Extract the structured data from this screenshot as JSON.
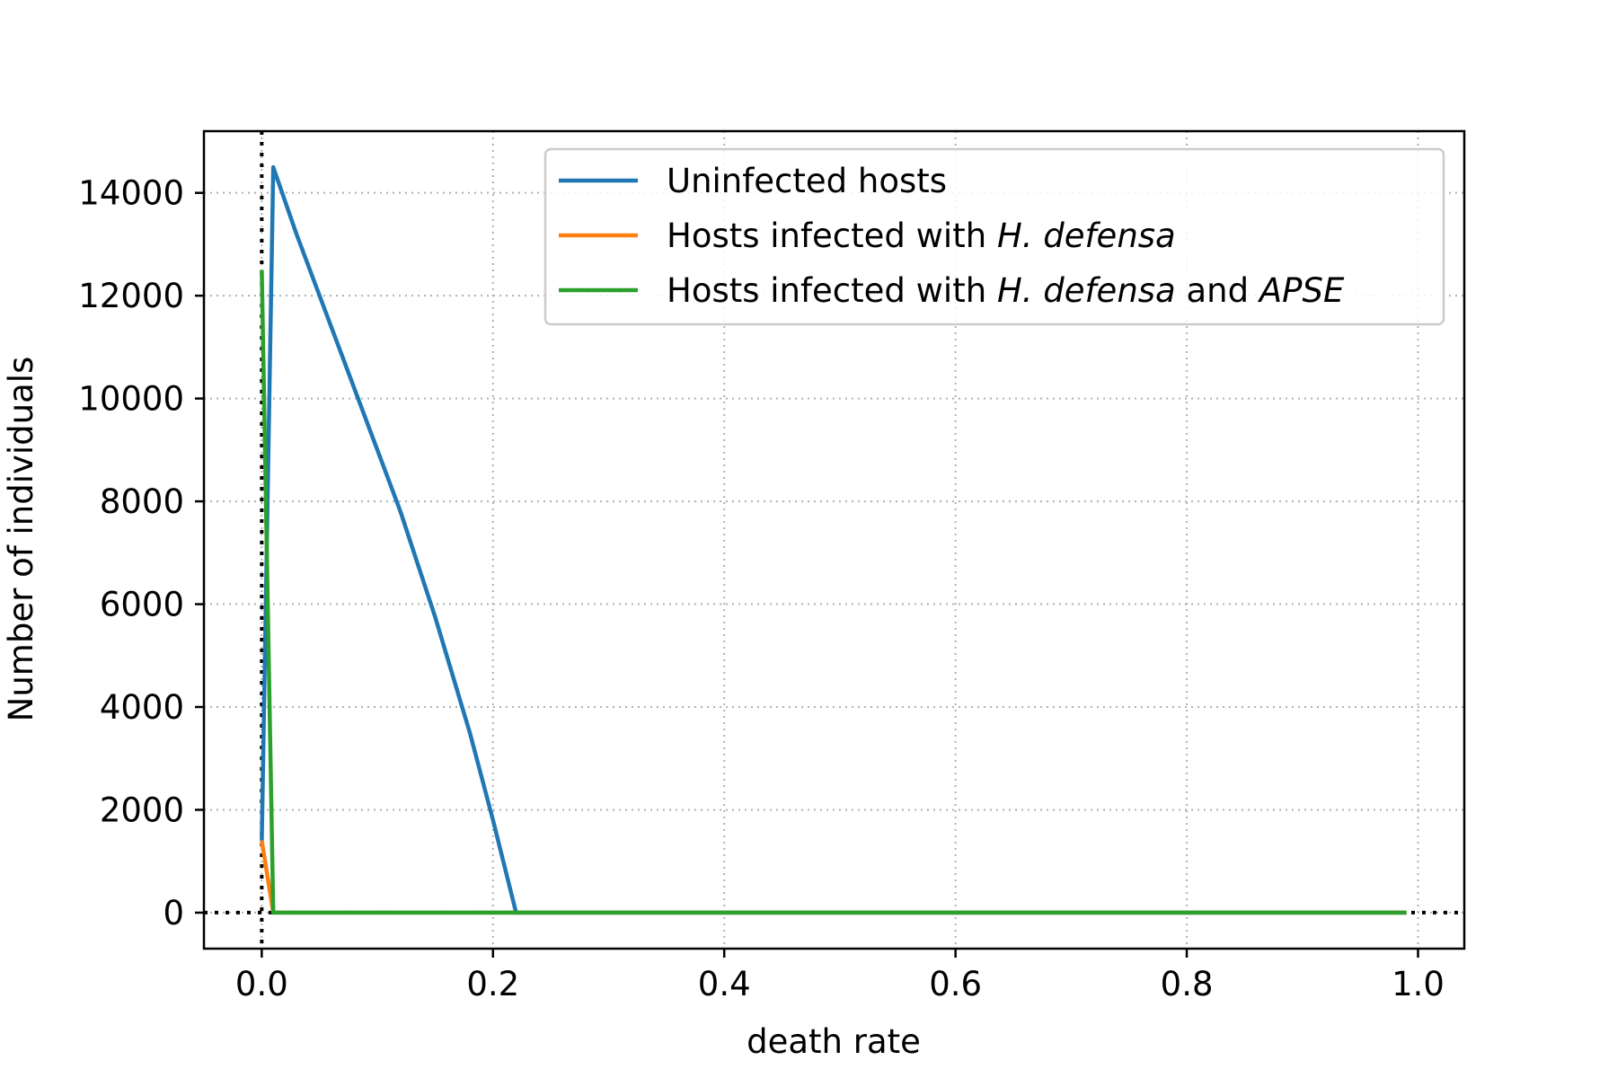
{
  "chart_data": {
    "type": "line",
    "title": "",
    "xlabel": "death rate",
    "ylabel": "Number of individuals",
    "xlim": [
      -0.05,
      1.04
    ],
    "ylim": [
      -700,
      15200
    ],
    "xticks": [
      0.0,
      0.2,
      0.4,
      0.6,
      0.8,
      1.0
    ],
    "xtick_labels": [
      "0.0",
      "0.2",
      "0.4",
      "0.6",
      "0.8",
      "1.0"
    ],
    "yticks": [
      0,
      2000,
      4000,
      6000,
      8000,
      10000,
      12000,
      14000
    ],
    "ytick_labels": [
      "0",
      "2000",
      "4000",
      "6000",
      "8000",
      "10000",
      "12000",
      "14000"
    ],
    "grid": true,
    "legend_position": "top-right",
    "reference_lines": {
      "x": 0,
      "y": 0
    },
    "series": [
      {
        "name": "Uninfected hosts",
        "color": "#1f77b4",
        "x": [
          0.0,
          0.01,
          0.03,
          0.06,
          0.09,
          0.12,
          0.15,
          0.18,
          0.2,
          0.22,
          0.25,
          0.5,
          0.75,
          0.99
        ],
        "y": [
          1400,
          14500,
          13200,
          11400,
          9600,
          7800,
          5750,
          3500,
          1800,
          0,
          0,
          0,
          0,
          0
        ]
      },
      {
        "name": "Hosts infected with H. defensa",
        "name_parts": [
          {
            "text": "Hosts infected with ",
            "italic": false
          },
          {
            "text": "H. defensa",
            "italic": true
          }
        ],
        "color": "#ff7f0e",
        "x": [
          0.0,
          0.01,
          0.25,
          0.5,
          0.75,
          0.99
        ],
        "y": [
          1400,
          0,
          0,
          0,
          0,
          0
        ]
      },
      {
        "name": "Hosts infected with H. defensa and APSE",
        "name_parts": [
          {
            "text": "Hosts infected with ",
            "italic": false
          },
          {
            "text": "H. defensa",
            "italic": true
          },
          {
            "text": " and ",
            "italic": false
          },
          {
            "text": "APSE",
            "italic": true
          }
        ],
        "color": "#2ca02c",
        "x": [
          0.0,
          0.01,
          0.25,
          0.5,
          0.75,
          0.99
        ],
        "y": [
          12500,
          0,
          0,
          0,
          0,
          0
        ]
      }
    ]
  }
}
